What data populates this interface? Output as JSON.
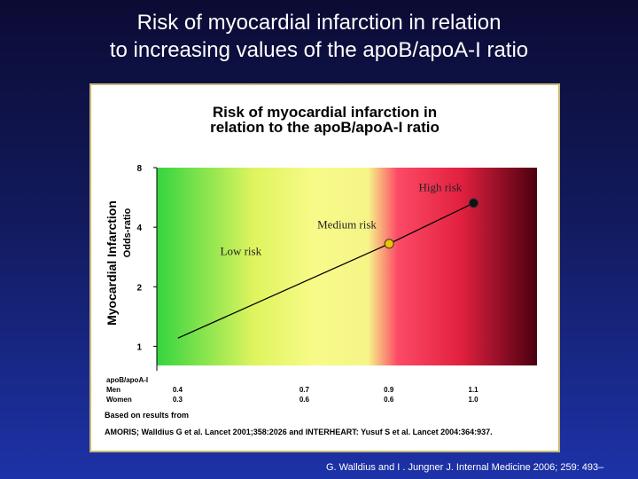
{
  "slide": {
    "title_line1": "Risk of myocardial infarction in relation",
    "title_line2": "to increasing values of the apoB/apoA-I ratio"
  },
  "figure": {
    "title_line1": "Risk of myocardial infarction in",
    "title_line2": "relation to the apoB/apoA-I ratio"
  },
  "chart_data": {
    "type": "line",
    "title": "Risk of myocardial infarction in relation to the apoB/apoA-I ratio",
    "ylabel": "Myocardial Infarction",
    "ylabel_sub": "Odds-ratio",
    "y_scale": "log2",
    "y_ticks": [
      "1",
      "2",
      "4",
      "8"
    ],
    "ylim": [
      0.8,
      8
    ],
    "xlim": [
      0.35,
      1.25
    ],
    "x_table": {
      "header": "apoB/apoA-I",
      "rows": [
        {
          "label": "Men",
          "values": [
            "0.4",
            "0.7",
            "0.9",
            "1.1"
          ]
        },
        {
          "label": "Women",
          "values": [
            "0.3",
            "0.6",
            "0.6",
            "1.0"
          ]
        }
      ],
      "x_positions": [
        0.4,
        0.7,
        0.9,
        1.1
      ]
    },
    "series": [
      {
        "values": [
          [
            0.4,
            1.1
          ],
          [
            0.9,
            3.3
          ],
          [
            1.1,
            5.3
          ]
        ],
        "color": "#000000"
      }
    ],
    "markers": [
      {
        "x": 0.9,
        "y": 3.3,
        "color": "#f2c200"
      },
      {
        "x": 1.1,
        "y": 5.3,
        "color": "#111111"
      }
    ],
    "zones": [
      "Low risk",
      "Medium risk",
      "High risk"
    ],
    "zone_labels_at": [
      [
        0.5,
        2.9
      ],
      [
        0.73,
        3.95
      ],
      [
        0.97,
        6.1
      ]
    ],
    "background_stops": [
      {
        "x": 0.35,
        "color": "#34d53f"
      },
      {
        "x": 0.58,
        "color": "#dff45e"
      },
      {
        "x": 0.72,
        "color": "#f7fa88"
      },
      {
        "x": 0.85,
        "color": "#f6f588"
      },
      {
        "x": 0.92,
        "color": "#fc4a66"
      },
      {
        "x": 1.07,
        "color": "#e2203f"
      },
      {
        "x": 1.25,
        "color": "#4a0010"
      }
    ],
    "grid": false
  },
  "footnote": {
    "based_on": "Based on results from",
    "sources": "AMORIS;   Walldius G et al.  Lancet 2001;358:2026 and INTERHEART:   Yusuf S et al.  Lancet 2004:364:937."
  },
  "citation": "G. Walldius and  I . Jungner J. Internal Medicine 2006; 259: 493–"
}
